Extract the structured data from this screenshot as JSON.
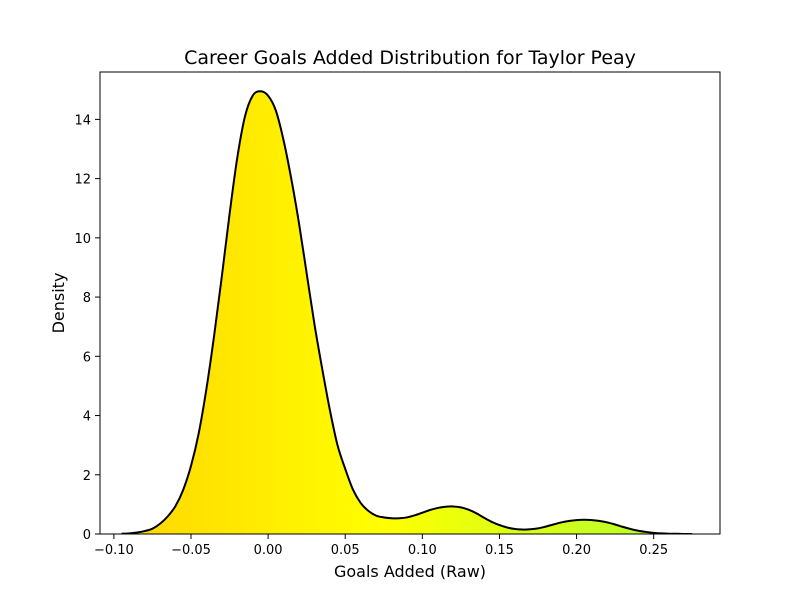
{
  "chart_data": {
    "type": "area",
    "title": "Career Goals Added Distribution for Taylor Peay",
    "xlabel": "Goals Added (Raw)",
    "ylabel": "Density",
    "xlim": [
      -0.109,
      0.293
    ],
    "ylim": [
      0,
      15.6
    ],
    "xticks": [
      -0.1,
      -0.05,
      0.0,
      0.05,
      0.1,
      0.15,
      0.2,
      0.25
    ],
    "xtick_labels": [
      "−0.10",
      "−0.05",
      "0.00",
      "0.05",
      "0.10",
      "0.15",
      "0.20",
      "0.25"
    ],
    "yticks": [
      0,
      2,
      4,
      6,
      8,
      10,
      12,
      14
    ],
    "ytick_labels": [
      "0",
      "2",
      "4",
      "6",
      "8",
      "10",
      "12",
      "14"
    ],
    "grid": false,
    "legend": "none",
    "line_color": "#000000",
    "fill_gradient": [
      "#ffd700",
      "#ffff00",
      "#adff2f"
    ],
    "x": [
      -0.095,
      -0.09,
      -0.085,
      -0.08,
      -0.075,
      -0.07,
      -0.065,
      -0.06,
      -0.055,
      -0.05,
      -0.045,
      -0.04,
      -0.035,
      -0.03,
      -0.025,
      -0.02,
      -0.015,
      -0.01,
      -0.005,
      0.0,
      0.005,
      0.01,
      0.015,
      0.02,
      0.025,
      0.03,
      0.035,
      0.04,
      0.045,
      0.05,
      0.055,
      0.06,
      0.065,
      0.07,
      0.075,
      0.08,
      0.085,
      0.09,
      0.095,
      0.1,
      0.105,
      0.11,
      0.115,
      0.12,
      0.125,
      0.13,
      0.135,
      0.14,
      0.145,
      0.15,
      0.155,
      0.16,
      0.165,
      0.17,
      0.175,
      0.18,
      0.185,
      0.19,
      0.195,
      0.2,
      0.205,
      0.21,
      0.215,
      0.22,
      0.225,
      0.23,
      0.235,
      0.24,
      0.245,
      0.25,
      0.255,
      0.26,
      0.265,
      0.27,
      0.275
    ],
    "density": [
      0.01,
      0.02,
      0.05,
      0.1,
      0.18,
      0.35,
      0.6,
      0.95,
      1.5,
      2.3,
      3.4,
      4.9,
      6.7,
      8.7,
      10.8,
      12.7,
      14.1,
      14.8,
      14.95,
      14.8,
      14.3,
      13.3,
      12.0,
      10.5,
      8.8,
      7.1,
      5.6,
      4.2,
      3.0,
      2.2,
      1.5,
      1.05,
      0.78,
      0.62,
      0.56,
      0.53,
      0.53,
      0.56,
      0.63,
      0.72,
      0.81,
      0.88,
      0.92,
      0.93,
      0.9,
      0.82,
      0.7,
      0.55,
      0.41,
      0.3,
      0.22,
      0.17,
      0.15,
      0.16,
      0.19,
      0.25,
      0.32,
      0.39,
      0.44,
      0.47,
      0.48,
      0.47,
      0.44,
      0.39,
      0.32,
      0.24,
      0.17,
      0.11,
      0.07,
      0.04,
      0.02,
      0.01,
      0.01,
      0.0,
      0.0
    ]
  }
}
